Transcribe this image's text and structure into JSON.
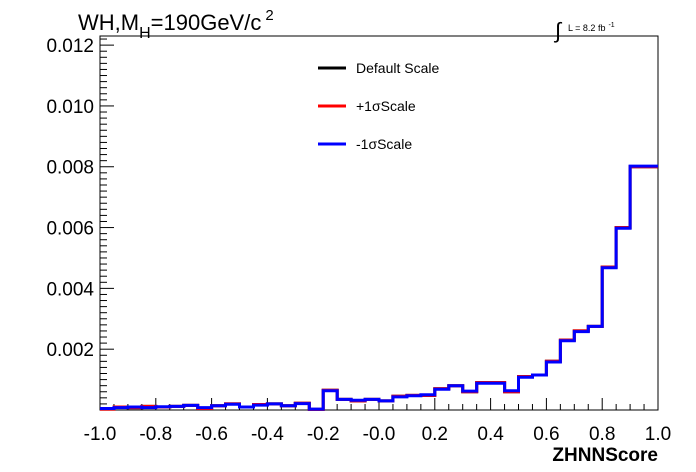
{
  "chart_data": {
    "type": "line",
    "title_main": "WH,M",
    "title_sub": "H",
    "title_rest": "=190GeV/c",
    "title_sup": "2",
    "lumi_text": "L = 8.2 fb",
    "lumi_sup": "-1",
    "xlabel": "ZHNNScore",
    "ylabel": "",
    "xlim": [
      -1.0,
      1.0
    ],
    "ylim": [
      0.0,
      0.0123
    ],
    "x_ticks": [
      "-1.0",
      "-0.8",
      "-0.6",
      "-0.4",
      "-0.2",
      "-0.0",
      "0.2",
      "0.4",
      "0.6",
      "0.8",
      "1.0"
    ],
    "y_ticks": [
      "0.002",
      "0.004",
      "0.006",
      "0.008",
      "0.010",
      "0.012"
    ],
    "legend_position": "top-center",
    "bin_edges_start": -1.0,
    "bin_width": 0.05,
    "series": [
      {
        "name": "Default Scale",
        "color": "#000000",
        "values": [
          3e-05,
          0.0001,
          8e-05,
          0.00012,
          0.0001,
          0.00012,
          0.00015,
          5e-05,
          0.00014,
          0.0002,
          0.0001,
          0.00018,
          0.0002,
          0.00014,
          0.00022,
          2e-05,
          0.00065,
          0.00035,
          0.0003,
          0.00035,
          0.0003,
          0.00045,
          0.00048,
          0.00048,
          0.0007,
          0.0008,
          0.0006,
          0.0009,
          0.0009,
          0.0006,
          0.0011,
          0.00115,
          0.0016,
          0.0023,
          0.0026,
          0.00275,
          0.0047,
          0.006,
          0.008,
          0.008
        ]
      },
      {
        "name": "+1σScale",
        "color": "#ff0000",
        "values": [
          3e-05,
          0.0001,
          8e-05,
          0.00012,
          0.0001,
          0.00012,
          0.00015,
          5e-05,
          0.00014,
          0.0002,
          0.0001,
          0.00018,
          0.0002,
          0.00014,
          0.00022,
          2e-05,
          0.00065,
          0.00035,
          0.0003,
          0.00035,
          0.0003,
          0.00045,
          0.00048,
          0.00048,
          0.0007,
          0.0008,
          0.0006,
          0.0009,
          0.0009,
          0.0006,
          0.0011,
          0.00115,
          0.0016,
          0.0023,
          0.0026,
          0.00275,
          0.0047,
          0.006,
          0.008,
          0.008
        ]
      },
      {
        "name": "-1σScale",
        "color": "#0000ff",
        "values": [
          5e-05,
          8e-05,
          0.0001,
          8e-05,
          0.00011,
          0.00012,
          0.00015,
          8e-05,
          0.00014,
          0.00019,
          0.0001,
          0.00016,
          0.0002,
          0.00014,
          0.00021,
          3e-05,
          0.00063,
          0.00035,
          0.00032,
          0.00035,
          0.0003,
          0.00043,
          0.00047,
          0.0005,
          0.00068,
          0.0008,
          0.00062,
          0.00088,
          0.00088,
          0.00063,
          0.00108,
          0.00115,
          0.00158,
          0.00228,
          0.00258,
          0.00275,
          0.00468,
          0.00598,
          0.00802,
          0.00802
        ]
      }
    ]
  }
}
